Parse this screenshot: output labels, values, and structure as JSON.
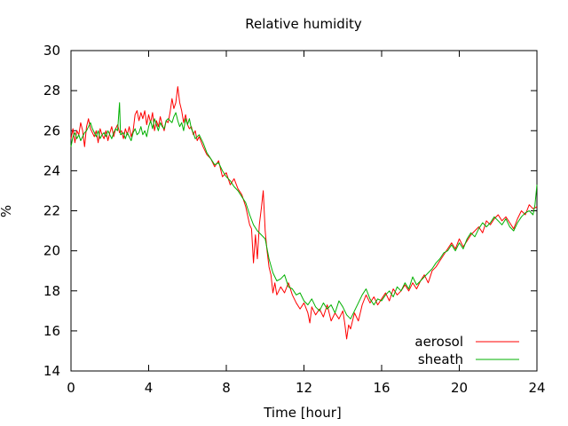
{
  "chart_data": {
    "type": "line",
    "title": "Relative humidity",
    "xlabel": "Time [hour]",
    "ylabel": "%",
    "xlim": [
      0,
      24
    ],
    "ylim": [
      14,
      30
    ],
    "x_ticks": [
      0,
      4,
      8,
      12,
      16,
      20,
      24
    ],
    "y_ticks": [
      14,
      16,
      18,
      20,
      22,
      24,
      26,
      28,
      30
    ],
    "grid": false,
    "legend_position": "bottom-right",
    "series": [
      {
        "name": "aerosol",
        "color": "#ff0000",
        "points": [
          [
            0.0,
            25.6
          ],
          [
            0.1,
            26.1
          ],
          [
            0.2,
            25.4
          ],
          [
            0.3,
            26.0
          ],
          [
            0.4,
            25.8
          ],
          [
            0.5,
            26.4
          ],
          [
            0.6,
            26.0
          ],
          [
            0.7,
            25.2
          ],
          [
            0.8,
            26.2
          ],
          [
            0.9,
            26.6
          ],
          [
            1.0,
            26.1
          ],
          [
            1.1,
            25.9
          ],
          [
            1.2,
            25.7
          ],
          [
            1.3,
            26.0
          ],
          [
            1.4,
            25.4
          ],
          [
            1.5,
            26.1
          ],
          [
            1.6,
            25.8
          ],
          [
            1.7,
            25.6
          ],
          [
            1.8,
            26.0
          ],
          [
            1.9,
            25.5
          ],
          [
            2.0,
            25.9
          ],
          [
            2.1,
            26.2
          ],
          [
            2.2,
            25.7
          ],
          [
            2.3,
            26.1
          ],
          [
            2.4,
            26.3
          ],
          [
            2.5,
            25.9
          ],
          [
            2.6,
            26.0
          ],
          [
            2.7,
            25.6
          ],
          [
            2.8,
            26.1
          ],
          [
            2.9,
            25.8
          ],
          [
            3.0,
            26.2
          ],
          [
            3.1,
            25.7
          ],
          [
            3.2,
            26.0
          ],
          [
            3.3,
            26.8
          ],
          [
            3.4,
            27.0
          ],
          [
            3.5,
            26.5
          ],
          [
            3.6,
            26.9
          ],
          [
            3.7,
            26.6
          ],
          [
            3.8,
            27.0
          ],
          [
            3.9,
            26.3
          ],
          [
            4.0,
            26.8
          ],
          [
            4.1,
            26.4
          ],
          [
            4.2,
            26.9
          ],
          [
            4.3,
            26.0
          ],
          [
            4.4,
            26.5
          ],
          [
            4.5,
            26.2
          ],
          [
            4.6,
            26.7
          ],
          [
            4.7,
            26.3
          ],
          [
            4.8,
            26.0
          ],
          [
            4.9,
            26.5
          ],
          [
            5.0,
            26.4
          ],
          [
            5.1,
            26.9
          ],
          [
            5.2,
            27.6
          ],
          [
            5.3,
            27.1
          ],
          [
            5.4,
            27.4
          ],
          [
            5.5,
            28.2
          ],
          [
            5.6,
            27.4
          ],
          [
            5.7,
            27.0
          ],
          [
            5.8,
            26.4
          ],
          [
            5.9,
            26.8
          ],
          [
            6.0,
            26.3
          ],
          [
            6.1,
            26.1
          ],
          [
            6.2,
            26.2
          ],
          [
            6.3,
            25.8
          ],
          [
            6.4,
            26.0
          ],
          [
            6.5,
            25.5
          ],
          [
            6.6,
            25.7
          ],
          [
            6.8,
            25.2
          ],
          [
            7.0,
            24.8
          ],
          [
            7.2,
            24.6
          ],
          [
            7.4,
            24.2
          ],
          [
            7.6,
            24.5
          ],
          [
            7.8,
            23.7
          ],
          [
            8.0,
            23.9
          ],
          [
            8.2,
            23.3
          ],
          [
            8.4,
            23.6
          ],
          [
            8.6,
            23.1
          ],
          [
            8.8,
            22.8
          ],
          [
            9.0,
            22.2
          ],
          [
            9.2,
            21.3
          ],
          [
            9.3,
            21.1
          ],
          [
            9.4,
            19.4
          ],
          [
            9.5,
            20.8
          ],
          [
            9.6,
            19.6
          ],
          [
            9.7,
            21.3
          ],
          [
            9.8,
            22.1
          ],
          [
            9.9,
            23.0
          ],
          [
            10.0,
            21.0
          ],
          [
            10.1,
            20.0
          ],
          [
            10.2,
            19.2
          ],
          [
            10.3,
            18.8
          ],
          [
            10.4,
            17.9
          ],
          [
            10.5,
            18.4
          ],
          [
            10.6,
            17.8
          ],
          [
            10.8,
            18.2
          ],
          [
            11.0,
            17.9
          ],
          [
            11.2,
            18.4
          ],
          [
            11.4,
            17.8
          ],
          [
            11.6,
            17.4
          ],
          [
            11.8,
            17.1
          ],
          [
            12.0,
            17.4
          ],
          [
            12.2,
            16.9
          ],
          [
            12.3,
            16.4
          ],
          [
            12.4,
            17.2
          ],
          [
            12.6,
            16.8
          ],
          [
            12.8,
            17.1
          ],
          [
            13.0,
            16.7
          ],
          [
            13.2,
            17.3
          ],
          [
            13.4,
            16.5
          ],
          [
            13.6,
            16.9
          ],
          [
            13.8,
            16.6
          ],
          [
            14.0,
            17.0
          ],
          [
            14.1,
            16.4
          ],
          [
            14.2,
            15.6
          ],
          [
            14.3,
            16.3
          ],
          [
            14.4,
            16.1
          ],
          [
            14.6,
            16.9
          ],
          [
            14.8,
            16.5
          ],
          [
            15.0,
            17.3
          ],
          [
            15.2,
            17.8
          ],
          [
            15.4,
            17.4
          ],
          [
            15.6,
            17.7
          ],
          [
            15.8,
            17.3
          ],
          [
            16.0,
            17.6
          ],
          [
            16.2,
            17.9
          ],
          [
            16.4,
            17.5
          ],
          [
            16.6,
            18.1
          ],
          [
            16.8,
            17.8
          ],
          [
            17.0,
            18.0
          ],
          [
            17.2,
            18.3
          ],
          [
            17.4,
            18.0
          ],
          [
            17.6,
            18.4
          ],
          [
            17.8,
            18.1
          ],
          [
            18.0,
            18.5
          ],
          [
            18.2,
            18.8
          ],
          [
            18.4,
            18.4
          ],
          [
            18.6,
            19.0
          ],
          [
            18.8,
            19.2
          ],
          [
            19.0,
            19.5
          ],
          [
            19.2,
            19.8
          ],
          [
            19.4,
            20.1
          ],
          [
            19.6,
            20.4
          ],
          [
            19.8,
            20.1
          ],
          [
            20.0,
            20.6
          ],
          [
            20.2,
            20.2
          ],
          [
            20.4,
            20.5
          ],
          [
            20.6,
            20.8
          ],
          [
            20.8,
            21.0
          ],
          [
            21.0,
            21.2
          ],
          [
            21.2,
            20.9
          ],
          [
            21.4,
            21.5
          ],
          [
            21.6,
            21.3
          ],
          [
            21.8,
            21.6
          ],
          [
            22.0,
            21.8
          ],
          [
            22.2,
            21.5
          ],
          [
            22.4,
            21.7
          ],
          [
            22.6,
            21.4
          ],
          [
            22.8,
            21.1
          ],
          [
            23.0,
            21.6
          ],
          [
            23.2,
            22.0
          ],
          [
            23.4,
            21.8
          ],
          [
            23.6,
            22.3
          ],
          [
            23.8,
            22.1
          ],
          [
            24.0,
            22.2
          ]
        ]
      },
      {
        "name": "sheath",
        "color": "#00b000",
        "points": [
          [
            0.0,
            25.2
          ],
          [
            0.1,
            25.7
          ],
          [
            0.2,
            25.9
          ],
          [
            0.3,
            25.6
          ],
          [
            0.4,
            25.8
          ],
          [
            0.5,
            25.5
          ],
          [
            0.6,
            25.7
          ],
          [
            0.7,
            25.9
          ],
          [
            0.8,
            26.0
          ],
          [
            0.9,
            26.2
          ],
          [
            1.0,
            26.4
          ],
          [
            1.1,
            26.1
          ],
          [
            1.2,
            25.9
          ],
          [
            1.3,
            25.7
          ],
          [
            1.4,
            26.0
          ],
          [
            1.5,
            25.6
          ],
          [
            1.6,
            25.8
          ],
          [
            1.7,
            25.9
          ],
          [
            1.8,
            25.7
          ],
          [
            1.9,
            26.0
          ],
          [
            2.0,
            25.8
          ],
          [
            2.1,
            25.6
          ],
          [
            2.2,
            25.9
          ],
          [
            2.3,
            26.1
          ],
          [
            2.4,
            26.0
          ],
          [
            2.5,
            27.4
          ],
          [
            2.55,
            25.8
          ],
          [
            2.7,
            25.9
          ],
          [
            2.8,
            25.6
          ],
          [
            2.9,
            25.9
          ],
          [
            3.0,
            25.7
          ],
          [
            3.1,
            25.5
          ],
          [
            3.2,
            25.9
          ],
          [
            3.3,
            26.1
          ],
          [
            3.4,
            25.8
          ],
          [
            3.5,
            25.9
          ],
          [
            3.6,
            26.2
          ],
          [
            3.7,
            25.8
          ],
          [
            3.8,
            26.0
          ],
          [
            3.9,
            25.7
          ],
          [
            4.0,
            26.2
          ],
          [
            4.1,
            26.5
          ],
          [
            4.2,
            26.1
          ],
          [
            4.3,
            26.6
          ],
          [
            4.4,
            26.3
          ],
          [
            4.5,
            26.0
          ],
          [
            4.6,
            26.4
          ],
          [
            4.7,
            26.2
          ],
          [
            4.8,
            26.1
          ],
          [
            4.9,
            26.5
          ],
          [
            5.0,
            26.6
          ],
          [
            5.1,
            26.5
          ],
          [
            5.2,
            26.4
          ],
          [
            5.3,
            26.7
          ],
          [
            5.4,
            26.9
          ],
          [
            5.5,
            26.5
          ],
          [
            5.6,
            26.2
          ],
          [
            5.7,
            26.4
          ],
          [
            5.8,
            26.0
          ],
          [
            5.9,
            26.6
          ],
          [
            6.0,
            26.3
          ],
          [
            6.1,
            26.6
          ],
          [
            6.2,
            26.1
          ],
          [
            6.3,
            25.9
          ],
          [
            6.4,
            25.6
          ],
          [
            6.6,
            25.8
          ],
          [
            6.8,
            25.4
          ],
          [
            7.0,
            24.9
          ],
          [
            7.2,
            24.6
          ],
          [
            7.4,
            24.3
          ],
          [
            7.6,
            24.4
          ],
          [
            7.8,
            24.0
          ],
          [
            8.0,
            23.7
          ],
          [
            8.2,
            23.5
          ],
          [
            8.4,
            23.2
          ],
          [
            8.6,
            23.0
          ],
          [
            8.8,
            22.7
          ],
          [
            9.0,
            22.4
          ],
          [
            9.2,
            21.8
          ],
          [
            9.4,
            21.3
          ],
          [
            9.6,
            21.0
          ],
          [
            9.8,
            20.8
          ],
          [
            10.0,
            20.6
          ],
          [
            10.2,
            19.6
          ],
          [
            10.4,
            18.9
          ],
          [
            10.6,
            18.5
          ],
          [
            10.8,
            18.6
          ],
          [
            11.0,
            18.8
          ],
          [
            11.2,
            18.2
          ],
          [
            11.4,
            18.1
          ],
          [
            11.6,
            17.8
          ],
          [
            11.8,
            17.9
          ],
          [
            12.0,
            17.5
          ],
          [
            12.2,
            17.3
          ],
          [
            12.4,
            17.6
          ],
          [
            12.6,
            17.2
          ],
          [
            12.8,
            17.0
          ],
          [
            13.0,
            17.4
          ],
          [
            13.2,
            17.1
          ],
          [
            13.4,
            17.3
          ],
          [
            13.6,
            16.9
          ],
          [
            13.8,
            17.5
          ],
          [
            14.0,
            17.2
          ],
          [
            14.2,
            16.8
          ],
          [
            14.4,
            16.6
          ],
          [
            14.6,
            17.0
          ],
          [
            14.8,
            17.4
          ],
          [
            15.0,
            17.8
          ],
          [
            15.2,
            18.1
          ],
          [
            15.4,
            17.6
          ],
          [
            15.6,
            17.3
          ],
          [
            15.8,
            17.6
          ],
          [
            16.0,
            17.5
          ],
          [
            16.2,
            17.8
          ],
          [
            16.4,
            18.0
          ],
          [
            16.6,
            17.7
          ],
          [
            16.8,
            18.2
          ],
          [
            17.0,
            18.0
          ],
          [
            17.2,
            18.4
          ],
          [
            17.4,
            18.1
          ],
          [
            17.6,
            18.7
          ],
          [
            17.8,
            18.3
          ],
          [
            18.0,
            18.5
          ],
          [
            18.2,
            18.7
          ],
          [
            18.4,
            18.9
          ],
          [
            18.6,
            19.1
          ],
          [
            18.8,
            19.4
          ],
          [
            19.0,
            19.6
          ],
          [
            19.2,
            19.9
          ],
          [
            19.4,
            20.0
          ],
          [
            19.6,
            20.3
          ],
          [
            19.8,
            20.0
          ],
          [
            20.0,
            20.4
          ],
          [
            20.2,
            20.1
          ],
          [
            20.4,
            20.6
          ],
          [
            20.6,
            20.9
          ],
          [
            20.8,
            20.7
          ],
          [
            21.0,
            21.1
          ],
          [
            21.2,
            21.4
          ],
          [
            21.4,
            21.2
          ],
          [
            21.6,
            21.4
          ],
          [
            21.8,
            21.7
          ],
          [
            22.0,
            21.5
          ],
          [
            22.2,
            21.3
          ],
          [
            22.4,
            21.6
          ],
          [
            22.6,
            21.2
          ],
          [
            22.8,
            21.0
          ],
          [
            23.0,
            21.4
          ],
          [
            23.2,
            21.7
          ],
          [
            23.4,
            21.9
          ],
          [
            23.6,
            22.0
          ],
          [
            23.8,
            21.8
          ],
          [
            23.9,
            22.3
          ],
          [
            24.0,
            23.3
          ]
        ]
      }
    ]
  }
}
